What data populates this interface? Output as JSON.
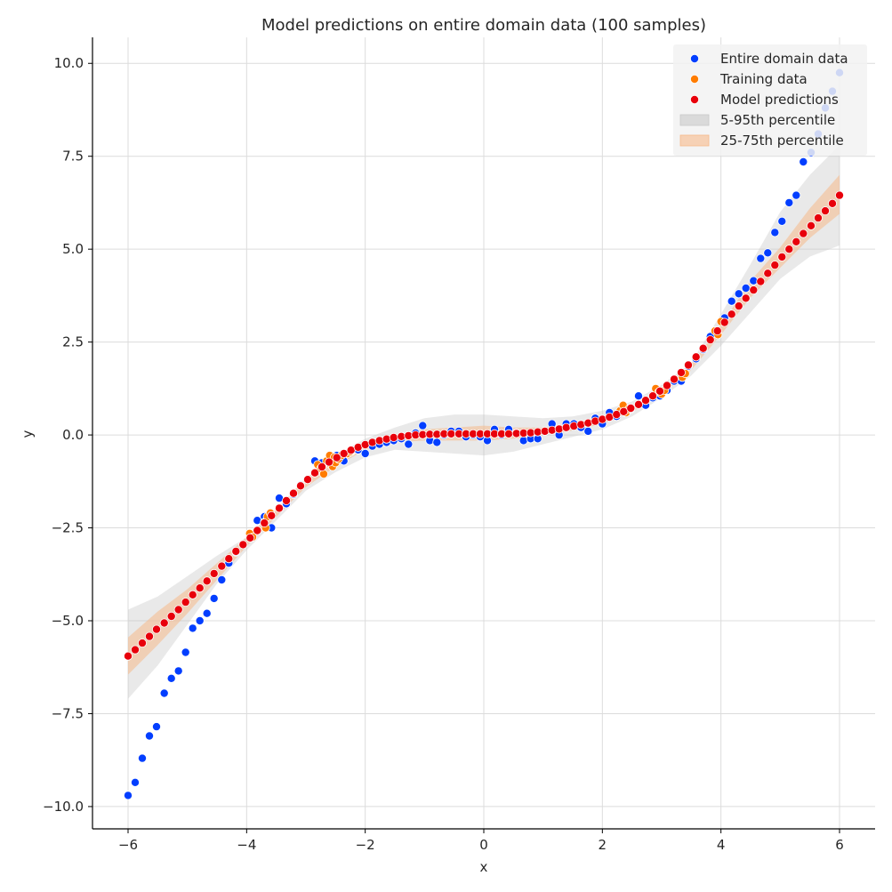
{
  "chart_data": {
    "type": "scatter",
    "title": "Model predictions on entire domain data (100 samples)",
    "xlabel": "x",
    "ylabel": "y",
    "xlim": [
      -6.6,
      6.6
    ],
    "ylim": [
      -10.6,
      10.7
    ],
    "xticks": [
      -6,
      -4,
      -2,
      0,
      2,
      4,
      6
    ],
    "yticks": [
      -10.0,
      -7.5,
      -5.0,
      -2.5,
      0.0,
      2.5,
      5.0,
      7.5,
      10.0
    ],
    "xtick_labels": [
      "−6",
      "−4",
      "−2",
      "0",
      "2",
      "4",
      "6"
    ],
    "ytick_labels": [
      "−10.0",
      "−7.5",
      "−5.0",
      "−2.5",
      "0.0",
      "2.5",
      "5.0",
      "7.5",
      "10.0"
    ],
    "grid": true,
    "legend_position": "top-right",
    "colors": {
      "domain": "#023eff",
      "training": "#ff7c00",
      "predictions": "#e8000b",
      "band_5_95": "#c8c8c8",
      "band_25_75": "#f6b98a"
    },
    "legend": [
      {
        "label": "Entire domain data",
        "kind": "dot",
        "color": "#023eff"
      },
      {
        "label": "Training data",
        "kind": "dot",
        "color": "#ff7c00"
      },
      {
        "label": "Model predictions",
        "kind": "dot",
        "color": "#e8000b"
      },
      {
        "label": "5-95th percentile",
        "kind": "patch",
        "color": "#c8c8c8"
      },
      {
        "label": "25-75th percentile",
        "kind": "patch",
        "color": "#f6b98a"
      }
    ],
    "series": [
      {
        "name": "Entire domain data",
        "x": [
          -6.0,
          -5.88,
          -5.76,
          -5.64,
          -5.52,
          -5.39,
          -5.27,
          -5.15,
          -5.03,
          -4.91,
          -4.79,
          -4.67,
          -4.55,
          -4.42,
          -4.3,
          -4.18,
          -4.06,
          -3.94,
          -3.82,
          -3.7,
          -3.58,
          -3.45,
          -3.33,
          -3.21,
          -3.09,
          -2.97,
          -2.85,
          -2.73,
          -2.61,
          -2.48,
          -2.36,
          -2.24,
          -2.12,
          -2.0,
          -1.88,
          -1.76,
          -1.64,
          -1.52,
          -1.39,
          -1.27,
          -1.15,
          -1.03,
          -0.91,
          -0.79,
          -0.67,
          -0.55,
          -0.42,
          -0.3,
          -0.18,
          -0.06,
          0.06,
          0.18,
          0.3,
          0.42,
          0.55,
          0.67,
          0.79,
          0.91,
          1.03,
          1.15,
          1.27,
          1.39,
          1.52,
          1.64,
          1.76,
          1.88,
          2.0,
          2.12,
          2.24,
          2.36,
          2.48,
          2.61,
          2.73,
          2.85,
          2.97,
          3.09,
          3.21,
          3.33,
          3.45,
          3.58,
          3.7,
          3.82,
          3.94,
          4.06,
          4.18,
          4.3,
          4.42,
          4.55,
          4.67,
          4.79,
          4.91,
          5.03,
          5.15,
          5.27,
          5.39,
          5.52,
          5.64,
          5.76,
          5.88,
          6.0
        ],
        "y": [
          -9.7,
          -9.35,
          -8.7,
          -8.1,
          -7.85,
          -6.95,
          -6.55,
          -6.35,
          -5.85,
          -5.2,
          -5.0,
          -4.8,
          -4.4,
          -3.9,
          -3.45,
          -3.15,
          -2.95,
          -2.75,
          -2.3,
          -2.2,
          -2.5,
          -1.7,
          -1.85,
          -1.6,
          -1.35,
          -1.2,
          -0.7,
          -0.75,
          -0.75,
          -0.55,
          -0.7,
          -0.45,
          -0.4,
          -0.5,
          -0.3,
          -0.25,
          -0.2,
          -0.15,
          -0.1,
          -0.25,
          0.05,
          0.25,
          -0.15,
          -0.2,
          0.0,
          0.1,
          0.1,
          -0.05,
          0.0,
          -0.05,
          -0.15,
          0.15,
          0.0,
          0.15,
          0.05,
          -0.15,
          -0.1,
          -0.1,
          0.1,
          0.3,
          0.0,
          0.3,
          0.3,
          0.2,
          0.1,
          0.45,
          0.3,
          0.6,
          0.5,
          0.7,
          0.7,
          1.05,
          0.8,
          1.0,
          1.05,
          1.2,
          1.45,
          1.45,
          1.85,
          2.05,
          2.3,
          2.65,
          2.75,
          3.15,
          3.6,
          3.8,
          3.95,
          4.15,
          4.75,
          4.9,
          5.45,
          5.75,
          6.25,
          6.45,
          7.35,
          7.6,
          8.1,
          8.8,
          9.25,
          9.75
        ]
      },
      {
        "name": "Training data",
        "x": [
          -3.95,
          -3.9,
          -3.7,
          -3.68,
          -3.65,
          -3.6,
          -2.8,
          -2.75,
          -2.7,
          -2.65,
          -2.6,
          -2.58,
          -2.55,
          -2.52,
          -2.5,
          -2.45,
          -2.4,
          -2.3,
          -2.25,
          2.3,
          2.35,
          2.4,
          2.45,
          2.9,
          2.95,
          3.0,
          3.05,
          3.35,
          3.4,
          3.9,
          3.95,
          4.0
        ],
        "y": [
          -2.65,
          -2.75,
          -2.35,
          -2.5,
          -2.2,
          -2.1,
          -0.8,
          -0.9,
          -1.05,
          -0.7,
          -0.55,
          -0.8,
          -0.85,
          -0.6,
          -0.75,
          -0.65,
          -0.55,
          -0.5,
          -0.45,
          0.65,
          0.8,
          0.6,
          0.7,
          1.25,
          1.15,
          1.1,
          1.2,
          1.55,
          1.65,
          2.8,
          2.7,
          3.05
        ]
      },
      {
        "name": "Model predictions",
        "x": [
          -6.0,
          -5.88,
          -5.76,
          -5.64,
          -5.52,
          -5.39,
          -5.27,
          -5.15,
          -5.03,
          -4.91,
          -4.79,
          -4.67,
          -4.55,
          -4.42,
          -4.3,
          -4.18,
          -4.06,
          -3.94,
          -3.82,
          -3.7,
          -3.58,
          -3.45,
          -3.33,
          -3.21,
          -3.09,
          -2.97,
          -2.85,
          -2.73,
          -2.61,
          -2.48,
          -2.36,
          -2.24,
          -2.12,
          -2.0,
          -1.88,
          -1.76,
          -1.64,
          -1.52,
          -1.39,
          -1.27,
          -1.15,
          -1.03,
          -0.91,
          -0.79,
          -0.67,
          -0.55,
          -0.42,
          -0.3,
          -0.18,
          -0.06,
          0.06,
          0.18,
          0.3,
          0.42,
          0.55,
          0.67,
          0.79,
          0.91,
          1.03,
          1.15,
          1.27,
          1.39,
          1.52,
          1.64,
          1.76,
          1.88,
          2.0,
          2.12,
          2.24,
          2.36,
          2.48,
          2.61,
          2.73,
          2.85,
          2.97,
          3.09,
          3.21,
          3.33,
          3.45,
          3.58,
          3.7,
          3.82,
          3.94,
          4.06,
          4.18,
          4.3,
          4.42,
          4.55,
          4.67,
          4.79,
          4.91,
          5.03,
          5.15,
          5.27,
          5.39,
          5.52,
          5.64,
          5.76,
          5.88,
          6.0
        ],
        "y": [
          -5.95,
          -5.78,
          -5.6,
          -5.42,
          -5.23,
          -5.06,
          -4.88,
          -4.7,
          -4.5,
          -4.3,
          -4.12,
          -3.93,
          -3.73,
          -3.53,
          -3.33,
          -3.13,
          -2.95,
          -2.77,
          -2.57,
          -2.37,
          -2.17,
          -1.97,
          -1.77,
          -1.57,
          -1.37,
          -1.2,
          -1.02,
          -0.86,
          -0.73,
          -0.61,
          -0.5,
          -0.41,
          -0.33,
          -0.26,
          -0.2,
          -0.15,
          -0.11,
          -0.07,
          -0.04,
          -0.02,
          0.0,
          0.01,
          0.02,
          0.02,
          0.03,
          0.03,
          0.03,
          0.03,
          0.03,
          0.03,
          0.03,
          0.03,
          0.03,
          0.03,
          0.04,
          0.05,
          0.06,
          0.08,
          0.1,
          0.13,
          0.16,
          0.2,
          0.24,
          0.28,
          0.32,
          0.37,
          0.42,
          0.48,
          0.55,
          0.63,
          0.72,
          0.82,
          0.93,
          1.05,
          1.18,
          1.33,
          1.5,
          1.68,
          1.88,
          2.1,
          2.33,
          2.56,
          2.8,
          3.03,
          3.25,
          3.47,
          3.68,
          3.9,
          4.13,
          4.35,
          4.57,
          4.79,
          5.0,
          5.2,
          5.42,
          5.63,
          5.84,
          6.03,
          6.23,
          6.45
        ]
      }
    ],
    "bands": [
      {
        "name": "5-95th percentile",
        "x": [
          -6.0,
          -5.5,
          -5.0,
          -4.5,
          -4.0,
          -3.5,
          -3.0,
          -2.5,
          -2.0,
          -1.5,
          -1.0,
          -0.5,
          0.0,
          0.5,
          1.0,
          1.5,
          2.0,
          2.5,
          3.0,
          3.5,
          4.0,
          4.5,
          5.0,
          5.5,
          6.0
        ],
        "lower": [
          -7.1,
          -6.2,
          -5.1,
          -4.0,
          -3.1,
          -2.3,
          -1.5,
          -1.0,
          -0.6,
          -0.4,
          -0.45,
          -0.5,
          -0.55,
          -0.45,
          -0.25,
          -0.05,
          0.15,
          0.5,
          1.0,
          1.6,
          2.4,
          3.3,
          4.2,
          4.8,
          5.1
        ],
        "upper": [
          -4.7,
          -4.35,
          -3.8,
          -3.25,
          -2.75,
          -2.05,
          -1.25,
          -0.55,
          -0.1,
          0.2,
          0.45,
          0.55,
          0.55,
          0.5,
          0.45,
          0.5,
          0.65,
          0.9,
          1.35,
          1.95,
          3.25,
          4.6,
          6.0,
          7.0,
          7.8
        ]
      },
      {
        "name": "25-75th percentile",
        "x": [
          -6.0,
          -5.5,
          -5.0,
          -4.5,
          -4.0,
          -3.5,
          -3.0,
          -2.5,
          -2.0,
          -1.5,
          -1.0,
          -0.5,
          0.0,
          0.5,
          1.0,
          1.5,
          2.0,
          2.5,
          3.0,
          3.5,
          4.0,
          4.5,
          5.0,
          5.5,
          6.0
        ],
        "lower": [
          -6.45,
          -5.65,
          -4.8,
          -3.9,
          -3.0,
          -2.2,
          -1.4,
          -0.85,
          -0.4,
          -0.2,
          -0.15,
          -0.15,
          -0.15,
          -0.1,
          0.0,
          0.12,
          0.3,
          0.62,
          1.1,
          1.75,
          2.7,
          3.7,
          4.5,
          5.3,
          5.95
        ],
        "upper": [
          -5.45,
          -4.75,
          -4.15,
          -3.45,
          -2.75,
          -2.0,
          -1.15,
          -0.6,
          -0.2,
          0.0,
          0.15,
          0.2,
          0.25,
          0.2,
          0.2,
          0.3,
          0.45,
          0.75,
          1.25,
          1.9,
          2.95,
          4.15,
          5.05,
          6.1,
          7.0
        ]
      }
    ]
  }
}
